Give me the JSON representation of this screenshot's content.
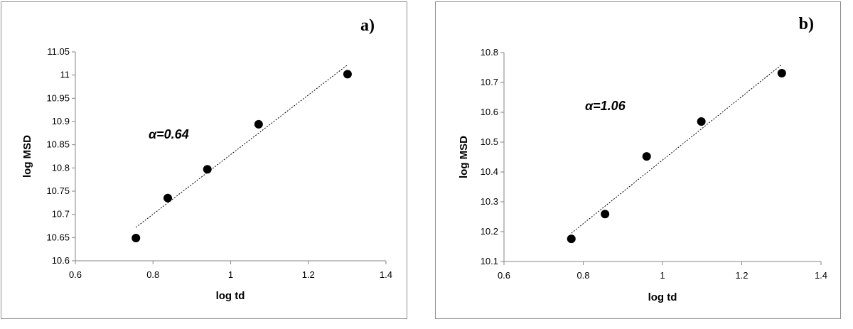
{
  "chart_data": [
    {
      "type": "scatter",
      "panel_label": "a)",
      "annotation": "α=0.64",
      "xlabel": "log td",
      "ylabel": "log MSD",
      "xlim": [
        0.6,
        1.4
      ],
      "ylim": [
        10.6,
        11.05
      ],
      "xticks": [
        "0.6",
        "0.8",
        "1",
        "1.2",
        "1.4"
      ],
      "yticks": [
        "10.6",
        "10.65",
        "10.7",
        "10.75",
        "10.8",
        "10.85",
        "10.9",
        "10.95",
        "11",
        "11.05"
      ],
      "grid": false,
      "x": [
        0.756,
        0.838,
        0.94,
        1.072,
        1.301
      ],
      "y": [
        10.649,
        10.735,
        10.797,
        10.894,
        11.002
      ],
      "trendline": {
        "type": "linear",
        "x": [
          0.756,
          1.301
        ],
        "y": [
          10.672,
          11.022
        ]
      }
    },
    {
      "type": "scatter",
      "panel_label": "b)",
      "annotation": "α=1.06",
      "xlabel": "log td",
      "ylabel": "log MSD",
      "xlim": [
        0.6,
        1.4
      ],
      "ylim": [
        10.1,
        10.8
      ],
      "xticks": [
        "0.6",
        "0.8",
        "1",
        "1.2",
        "1.4"
      ],
      "yticks": [
        "10.1",
        "10.2",
        "10.3",
        "10.4",
        "10.5",
        "10.6",
        "10.7",
        "10.8"
      ],
      "grid": false,
      "x": [
        0.77,
        0.855,
        0.96,
        1.098,
        1.301
      ],
      "y": [
        10.176,
        10.259,
        10.452,
        10.569,
        10.731
      ],
      "trendline": {
        "type": "linear",
        "x": [
          0.77,
          1.301
        ],
        "y": [
          10.195,
          10.76
        ]
      }
    }
  ]
}
